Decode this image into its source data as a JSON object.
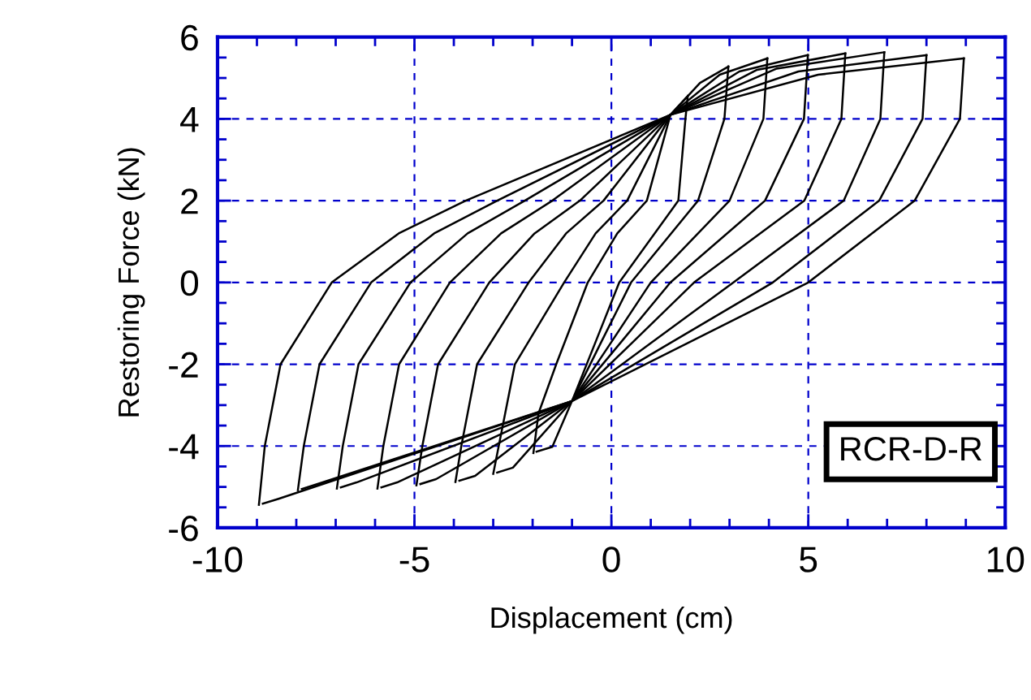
{
  "chart_data": {
    "type": "line",
    "xlabel": "Displacement (cm)",
    "ylabel": "Restoring Force (kN)",
    "xlim": [
      -10,
      10
    ],
    "ylim": [
      -6,
      6
    ],
    "xticks": [
      -10,
      -5,
      0,
      5,
      10
    ],
    "yticks": [
      -6,
      -4,
      -2,
      0,
      2,
      4,
      6
    ],
    "grid": true,
    "marker": "none",
    "line_style": "solid",
    "annotations": [
      "RCR-D-R"
    ],
    "series": [
      {
        "color": "#000000",
        "x": [
          -8.95,
          -8.8,
          -8.4,
          -7.1,
          -5.4,
          -3.7,
          1.5,
          5.25,
          8.95
        ],
        "values": [
          -5.44,
          -4,
          -2,
          0,
          1.2,
          2,
          4.1,
          5.08,
          5.48
        ]
      },
      {
        "color": "#000000",
        "x": [
          -8.85,
          -8.45,
          -1,
          1.9,
          5.0,
          7.7,
          8.85,
          8.95
        ],
        "values": [
          -5.41,
          -5.29,
          -2.9,
          -1.5,
          0,
          2,
          4,
          5.48
        ]
      },
      {
        "color": "#000000",
        "x": [
          -7.96,
          -7.81,
          -7.41,
          -6.1,
          -4.5,
          -2.9,
          1.5,
          4.75,
          8.0
        ],
        "values": [
          -5.08,
          -4,
          -2,
          0,
          1.2,
          2,
          4.1,
          5.16,
          5.56
        ]
      },
      {
        "color": "#000000",
        "x": [
          -7.86,
          -7.46,
          -1,
          1.46,
          4.1,
          6.8,
          7.9,
          8.0
        ],
        "values": [
          -5.05,
          -4.93,
          -2.9,
          -1.5,
          0,
          2,
          4,
          5.56
        ]
      },
      {
        "color": "#000000",
        "x": [
          -6.97,
          -6.82,
          -6.42,
          -5.1,
          -3.65,
          -2.2,
          1.5,
          4.2,
          6.93
        ],
        "values": [
          -5.04,
          -4,
          -2,
          0,
          1.2,
          2,
          4.1,
          5.23,
          5.63
        ]
      },
      {
        "color": "#000000",
        "x": [
          -6.87,
          -6.47,
          -1,
          0.98,
          3.1,
          5.9,
          6.83,
          6.93
        ],
        "values": [
          -5.01,
          -4.89,
          -2.9,
          -1.5,
          0,
          2,
          4,
          5.63
        ]
      },
      {
        "color": "#000000",
        "x": [
          -5.94,
          -5.79,
          -5.39,
          -4.1,
          -2.8,
          -1.5,
          1.5,
          3.7,
          5.94
        ],
        "values": [
          -5.04,
          -4,
          -2,
          0,
          1.2,
          2,
          4.1,
          5.2,
          5.6
        ]
      },
      {
        "color": "#000000",
        "x": [
          -5.84,
          -5.44,
          -1,
          0.5,
          2.1,
          4.9,
          5.84,
          5.94
        ],
        "values": [
          -5.01,
          -4.89,
          -2.9,
          -1.5,
          0,
          2,
          4,
          5.6
        ]
      },
      {
        "color": "#000000",
        "x": [
          -4.95,
          -4.8,
          -4.4,
          -3.1,
          -1.95,
          -0.8,
          1.5,
          3.25,
          4.99
        ],
        "values": [
          -4.96,
          -4,
          -2,
          0,
          1.2,
          2,
          4.1,
          5.16,
          5.56
        ]
      },
      {
        "color": "#000000",
        "x": [
          -4.85,
          -4.45,
          -1,
          0.21,
          1.5,
          3.9,
          4.89,
          4.99
        ],
        "values": [
          -4.93,
          -4.81,
          -2.9,
          -1.5,
          0,
          2,
          4,
          5.56
        ]
      },
      {
        "color": "#000000",
        "x": [
          -3.96,
          -3.81,
          -3.41,
          -2.1,
          -1.15,
          -0.2,
          1.5,
          2.75,
          3.96
        ],
        "values": [
          -4.88,
          -4,
          -2,
          0,
          1.2,
          2,
          4.1,
          5.08,
          5.48
        ]
      },
      {
        "color": "#000000",
        "x": [
          -3.86,
          -3.46,
          -1,
          -0.03,
          1.0,
          3.0,
          3.86,
          3.96
        ],
        "values": [
          -4.85,
          -4.73,
          -2.9,
          -1.5,
          0,
          2,
          4,
          5.48
        ]
      },
      {
        "color": "#000000",
        "x": [
          -3.0,
          -2.45,
          -1.2,
          -0.4,
          0.4,
          1.5,
          2.25,
          2.97
        ],
        "values": [
          -4.68,
          -2,
          0,
          1.2,
          2,
          4.1,
          4.88,
          5.28
        ]
      },
      {
        "color": "#000000",
        "x": [
          -2.9,
          -2.5,
          -1,
          -0.28,
          0.5,
          2.2,
          2.87,
          2.97
        ],
        "values": [
          -4.65,
          -4.53,
          -2.9,
          -1.5,
          0,
          2,
          4,
          5.28
        ]
      },
      {
        "color": "#000000",
        "x": [
          -1.98,
          -1.85,
          -1.4,
          -0.6,
          0.15,
          0.9,
          1.5,
          1.94
        ],
        "values": [
          -4.17,
          -3.2,
          -2,
          0,
          1.2,
          2,
          4.1,
          4.56
        ]
      },
      {
        "color": "#000000",
        "x": [
          -1.9,
          -1.5,
          -1,
          -0.42,
          0.2,
          1.7,
          1.88,
          1.94
        ],
        "values": [
          -4.14,
          -4.02,
          -2.9,
          -1.5,
          0,
          2,
          4,
          4.56
        ]
      }
    ]
  }
}
